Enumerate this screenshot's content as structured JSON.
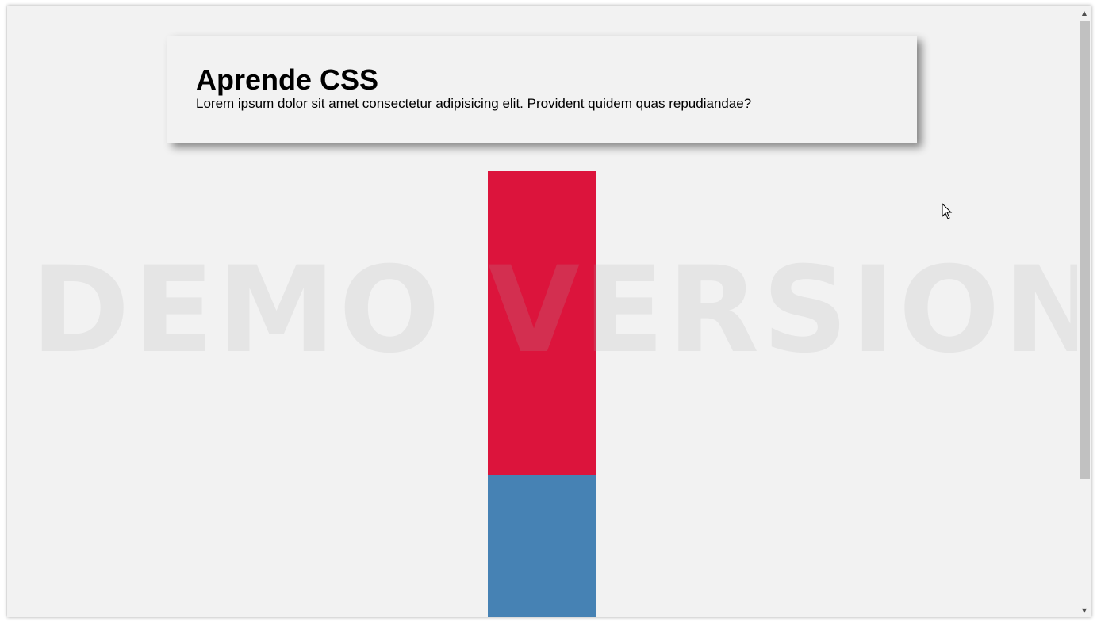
{
  "card": {
    "title": "Aprende CSS",
    "text": "Lorem ipsum dolor sit amet consectetur adipisicing elit. Provident quidem quas repudiandae?"
  },
  "blocks": {
    "red_color": "#dc143c",
    "blue_color": "#4682b4"
  },
  "watermark": {
    "text": "DEMO VERSION"
  },
  "scrollbar": {
    "up_icon": "chevron-up-icon",
    "down_icon": "chevron-down-icon",
    "up_glyph": "▲",
    "down_glyph": "▼"
  },
  "cursor": {
    "icon": "mouse-pointer-icon"
  }
}
